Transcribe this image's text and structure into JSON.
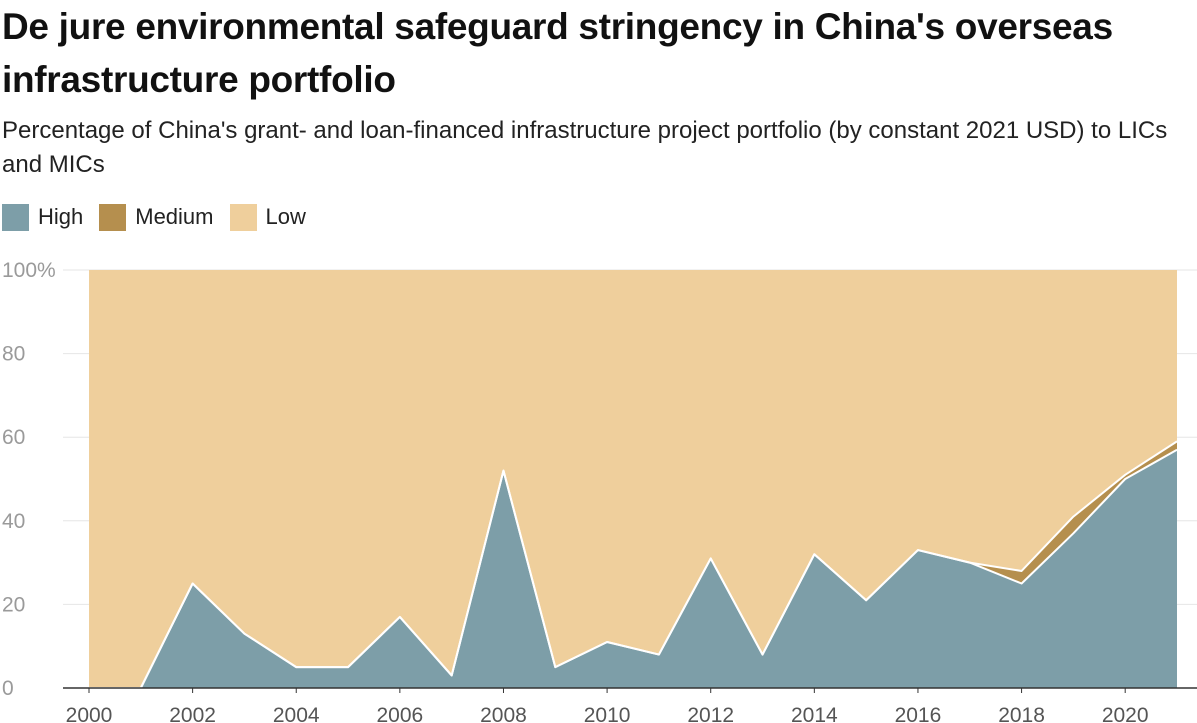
{
  "chart_data": {
    "type": "area",
    "stacked": true,
    "title": "De jure environmental safeguard stringency in China's overseas infrastructure portfolio",
    "subtitle": "Percentage of China's grant- and loan-financed infrastructure project portfolio (by constant 2021 USD) to LICs and MICs",
    "x": [
      2000,
      2001,
      2002,
      2003,
      2004,
      2005,
      2006,
      2007,
      2008,
      2009,
      2010,
      2011,
      2012,
      2013,
      2014,
      2015,
      2016,
      2017,
      2018,
      2019,
      2020,
      2021
    ],
    "x_tick_labels": [
      "2000",
      "2002",
      "2004",
      "2006",
      "2008",
      "2010",
      "2012",
      "2014",
      "2016",
      "2018",
      "2020"
    ],
    "y_tick_labels": [
      "0",
      "20",
      "40",
      "60",
      "80",
      "100%"
    ],
    "ylim": [
      0,
      100
    ],
    "grid": true,
    "legend_position": "top-left",
    "series": [
      {
        "name": "High",
        "color": "#7d9ea8",
        "values": [
          0,
          0,
          25,
          13,
          5,
          5,
          17,
          3,
          52,
          5,
          11,
          8,
          31,
          8,
          32,
          21,
          33,
          30,
          25,
          37,
          50,
          57
        ]
      },
      {
        "name": "Medium",
        "color": "#b58f4e",
        "values": [
          0,
          0,
          0,
          0,
          0,
          0,
          0,
          0,
          0,
          0,
          0,
          0,
          0,
          0,
          0,
          0,
          0,
          0,
          3,
          4,
          1,
          2
        ]
      },
      {
        "name": "Low",
        "color": "#efcf9c",
        "values": [
          100,
          100,
          75,
          87,
          95,
          95,
          83,
          97,
          48,
          95,
          89,
          92,
          69,
          92,
          68,
          79,
          67,
          70,
          72,
          59,
          49,
          41
        ]
      }
    ]
  }
}
